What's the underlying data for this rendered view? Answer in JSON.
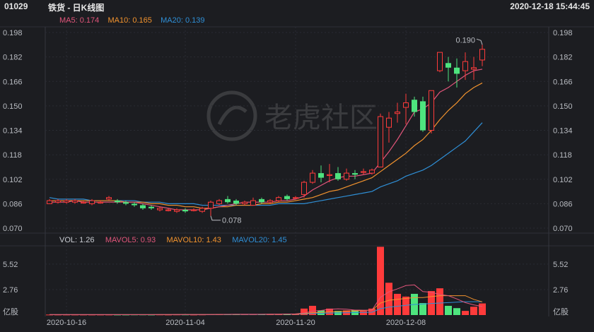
{
  "header": {
    "code": "01029",
    "title": "铁货 - 日K线图",
    "datetime": "2020-12-18 15:44:45"
  },
  "ma_legend": {
    "ma5": "MA5: 0.174",
    "ma10": "MA10: 0.165",
    "ma20": "MA20: 0.139"
  },
  "vol_legend": {
    "vol": "VOL: 1.26",
    "mavol5": "MAVOL5: 0.93",
    "mavol10": "MAVOL10: 1.43",
    "mavol20": "MAVOL20: 1.45"
  },
  "watermark": {
    "text": "老虎社区"
  },
  "colors": {
    "up": "#ff3b3b",
    "down": "#4ee47e",
    "ma5": "#e0557a",
    "ma10": "#f2932e",
    "ma20": "#2f8fd6",
    "grid": "#2a2c33"
  },
  "chart_data": [
    {
      "type": "candlestick",
      "title": "",
      "y_ticks": [
        "0.198",
        "0.182",
        "0.166",
        "0.150",
        "0.134",
        "0.118",
        "0.102",
        "0.086",
        "0.070"
      ],
      "ylim": [
        0.07,
        0.198
      ],
      "x_tick_labels": [
        "2020-10-16",
        "2020-11-04",
        "2020-11-20",
        "2020-12-08"
      ],
      "annotations": [
        {
          "label": "0.190"
        },
        {
          "label": "0.078"
        }
      ],
      "candles": [
        {
          "o": 0.086,
          "c": 0.088,
          "h": 0.089,
          "l": 0.086
        },
        {
          "o": 0.087,
          "c": 0.088,
          "h": 0.089,
          "l": 0.086
        },
        {
          "o": 0.087,
          "c": 0.088,
          "h": 0.089,
          "l": 0.086
        },
        {
          "o": 0.087,
          "c": 0.088,
          "h": 0.089,
          "l": 0.086
        },
        {
          "o": 0.087,
          "c": 0.087,
          "h": 0.088,
          "l": 0.086
        },
        {
          "o": 0.086,
          "c": 0.088,
          "h": 0.089,
          "l": 0.085
        },
        {
          "o": 0.087,
          "c": 0.087,
          "h": 0.088,
          "l": 0.086
        },
        {
          "o": 0.089,
          "c": 0.09,
          "h": 0.091,
          "l": 0.088
        },
        {
          "o": 0.088,
          "c": 0.087,
          "h": 0.089,
          "l": 0.086
        },
        {
          "o": 0.087,
          "c": 0.086,
          "h": 0.088,
          "l": 0.085
        },
        {
          "o": 0.086,
          "c": 0.085,
          "h": 0.087,
          "l": 0.084
        },
        {
          "o": 0.085,
          "c": 0.083,
          "h": 0.086,
          "l": 0.082
        },
        {
          "o": 0.084,
          "c": 0.083,
          "h": 0.085,
          "l": 0.082
        },
        {
          "o": 0.082,
          "c": 0.083,
          "h": 0.084,
          "l": 0.081
        },
        {
          "o": 0.082,
          "c": 0.082,
          "h": 0.083,
          "l": 0.081
        },
        {
          "o": 0.081,
          "c": 0.082,
          "h": 0.083,
          "l": 0.08
        },
        {
          "o": 0.082,
          "c": 0.081,
          "h": 0.083,
          "l": 0.08
        },
        {
          "o": 0.082,
          "c": 0.082,
          "h": 0.083,
          "l": 0.081
        },
        {
          "o": 0.081,
          "c": 0.083,
          "h": 0.084,
          "l": 0.08
        },
        {
          "o": 0.083,
          "c": 0.087,
          "h": 0.088,
          "l": 0.078
        },
        {
          "o": 0.086,
          "c": 0.088,
          "h": 0.089,
          "l": 0.085
        },
        {
          "o": 0.089,
          "c": 0.087,
          "h": 0.091,
          "l": 0.086
        },
        {
          "o": 0.088,
          "c": 0.086,
          "h": 0.089,
          "l": 0.085
        },
        {
          "o": 0.086,
          "c": 0.087,
          "h": 0.088,
          "l": 0.085
        },
        {
          "o": 0.085,
          "c": 0.088,
          "h": 0.09,
          "l": 0.085
        },
        {
          "o": 0.089,
          "c": 0.087,
          "h": 0.09,
          "l": 0.086
        },
        {
          "o": 0.087,
          "c": 0.088,
          "h": 0.089,
          "l": 0.086
        },
        {
          "o": 0.088,
          "c": 0.09,
          "h": 0.091,
          "l": 0.087
        },
        {
          "o": 0.091,
          "c": 0.089,
          "h": 0.092,
          "l": 0.088
        },
        {
          "o": 0.09,
          "c": 0.09,
          "h": 0.091,
          "l": 0.089
        },
        {
          "o": 0.092,
          "c": 0.1,
          "h": 0.101,
          "l": 0.09
        },
        {
          "o": 0.1,
          "c": 0.106,
          "h": 0.108,
          "l": 0.099
        },
        {
          "o": 0.106,
          "c": 0.103,
          "h": 0.111,
          "l": 0.1
        },
        {
          "o": 0.105,
          "c": 0.105,
          "h": 0.112,
          "l": 0.1
        },
        {
          "o": 0.106,
          "c": 0.102,
          "h": 0.11,
          "l": 0.101
        },
        {
          "o": 0.102,
          "c": 0.106,
          "h": 0.109,
          "l": 0.101
        },
        {
          "o": 0.106,
          "c": 0.105,
          "h": 0.108,
          "l": 0.102
        },
        {
          "o": 0.107,
          "c": 0.107,
          "h": 0.109,
          "l": 0.105
        },
        {
          "o": 0.106,
          "c": 0.108,
          "h": 0.109,
          "l": 0.105
        },
        {
          "o": 0.11,
          "c": 0.143,
          "h": 0.145,
          "l": 0.11
        },
        {
          "o": 0.136,
          "c": 0.142,
          "h": 0.146,
          "l": 0.126
        },
        {
          "o": 0.145,
          "c": 0.146,
          "h": 0.152,
          "l": 0.139
        },
        {
          "o": 0.149,
          "c": 0.152,
          "h": 0.158,
          "l": 0.138
        },
        {
          "o": 0.154,
          "c": 0.146,
          "h": 0.156,
          "l": 0.143
        },
        {
          "o": 0.153,
          "c": 0.134,
          "h": 0.156,
          "l": 0.133
        },
        {
          "o": 0.134,
          "c": 0.16,
          "h": 0.16,
          "l": 0.132
        },
        {
          "o": 0.173,
          "c": 0.185,
          "h": 0.185,
          "l": 0.172
        },
        {
          "o": 0.178,
          "c": 0.175,
          "h": 0.182,
          "l": 0.166
        },
        {
          "o": 0.175,
          "c": 0.171,
          "h": 0.181,
          "l": 0.162
        },
        {
          "o": 0.173,
          "c": 0.179,
          "h": 0.185,
          "l": 0.167
        },
        {
          "o": 0.174,
          "c": 0.175,
          "h": 0.182,
          "l": 0.167
        },
        {
          "o": 0.18,
          "c": 0.187,
          "h": 0.19,
          "l": 0.176
        }
      ],
      "ma5": [
        0.087,
        0.087,
        0.087,
        0.088,
        0.087,
        0.087,
        0.087,
        0.087,
        0.087,
        0.087,
        0.087,
        0.086,
        0.085,
        0.084,
        0.083,
        0.082,
        0.082,
        0.082,
        0.082,
        0.083,
        0.084,
        0.085,
        0.086,
        0.087,
        0.087,
        0.087,
        0.087,
        0.088,
        0.088,
        0.089,
        0.091,
        0.095,
        0.098,
        0.101,
        0.103,
        0.104,
        0.104,
        0.105,
        0.106,
        0.113,
        0.12,
        0.128,
        0.137,
        0.146,
        0.148,
        0.152,
        0.159,
        0.162,
        0.166,
        0.17,
        0.173,
        0.174
      ],
      "ma10": [
        0.088,
        0.088,
        0.088,
        0.088,
        0.088,
        0.088,
        0.088,
        0.088,
        0.088,
        0.087,
        0.087,
        0.087,
        0.086,
        0.086,
        0.085,
        0.085,
        0.084,
        0.084,
        0.083,
        0.083,
        0.084,
        0.084,
        0.085,
        0.085,
        0.085,
        0.086,
        0.086,
        0.087,
        0.087,
        0.088,
        0.089,
        0.09,
        0.092,
        0.094,
        0.095,
        0.097,
        0.099,
        0.101,
        0.103,
        0.107,
        0.111,
        0.115,
        0.119,
        0.124,
        0.128,
        0.134,
        0.141,
        0.147,
        0.152,
        0.158,
        0.162,
        0.165
      ],
      "ma20": [
        0.09,
        0.089,
        0.089,
        0.089,
        0.089,
        0.088,
        0.088,
        0.088,
        0.088,
        0.088,
        0.088,
        0.087,
        0.087,
        0.087,
        0.086,
        0.086,
        0.086,
        0.086,
        0.085,
        0.085,
        0.085,
        0.085,
        0.085,
        0.085,
        0.085,
        0.085,
        0.085,
        0.086,
        0.086,
        0.086,
        0.086,
        0.087,
        0.088,
        0.089,
        0.09,
        0.091,
        0.092,
        0.093,
        0.094,
        0.097,
        0.099,
        0.101,
        0.104,
        0.106,
        0.108,
        0.111,
        0.115,
        0.119,
        0.123,
        0.127,
        0.133,
        0.139
      ]
    },
    {
      "type": "bar",
      "title": "",
      "unit_label": "亿股",
      "y_ticks": [
        "5.52",
        "2.76"
      ],
      "ylim": [
        0,
        7.2
      ],
      "volumes": [
        0.05,
        0.05,
        0.05,
        0.05,
        0.05,
        0.05,
        0.05,
        0.05,
        0.05,
        0.05,
        0.06,
        0.06,
        0.05,
        0.06,
        0.05,
        0.06,
        0.06,
        0.05,
        0.06,
        0.08,
        0.1,
        0.1,
        0.09,
        0.08,
        0.1,
        0.1,
        0.1,
        0.11,
        0.13,
        0.15,
        0.7,
        1.0,
        0.5,
        0.7,
        0.45,
        0.5,
        0.55,
        0.45,
        0.7,
        7.4,
        3.5,
        2.3,
        2.0,
        2.3,
        1.3,
        2.6,
        2.9,
        1.0,
        0.75,
        0.45,
        0.9,
        1.26
      ],
      "mavol5": [
        0.05,
        0.05,
        0.05,
        0.05,
        0.05,
        0.05,
        0.05,
        0.05,
        0.05,
        0.05,
        0.05,
        0.05,
        0.05,
        0.06,
        0.06,
        0.06,
        0.06,
        0.06,
        0.06,
        0.06,
        0.07,
        0.08,
        0.09,
        0.09,
        0.09,
        0.09,
        0.1,
        0.1,
        0.11,
        0.12,
        0.22,
        0.42,
        0.5,
        0.62,
        0.67,
        0.63,
        0.54,
        0.53,
        0.53,
        1.93,
        2.52,
        2.84,
        3.2,
        3.27,
        2.55,
        2.47,
        2.23,
        2.1,
        1.75,
        1.35,
        1.1,
        0.93
      ],
      "mavol10": [
        0.05,
        0.05,
        0.05,
        0.05,
        0.05,
        0.05,
        0.05,
        0.05,
        0.05,
        0.05,
        0.05,
        0.05,
        0.05,
        0.05,
        0.05,
        0.06,
        0.06,
        0.06,
        0.06,
        0.06,
        0.06,
        0.07,
        0.07,
        0.08,
        0.08,
        0.08,
        0.09,
        0.09,
        0.1,
        0.1,
        0.16,
        0.25,
        0.29,
        0.35,
        0.38,
        0.42,
        0.45,
        0.49,
        0.54,
        1.3,
        1.6,
        1.7,
        1.8,
        1.9,
        1.9,
        2.0,
        2.1,
        2.1,
        2.1,
        2.1,
        1.7,
        1.43
      ],
      "mavol20": [
        0.05,
        0.05,
        0.05,
        0.05,
        0.05,
        0.05,
        0.05,
        0.05,
        0.05,
        0.05,
        0.05,
        0.05,
        0.05,
        0.05,
        0.05,
        0.05,
        0.05,
        0.05,
        0.05,
        0.05,
        0.06,
        0.06,
        0.06,
        0.06,
        0.06,
        0.06,
        0.07,
        0.07,
        0.08,
        0.08,
        0.12,
        0.17,
        0.19,
        0.22,
        0.23,
        0.25,
        0.27,
        0.29,
        0.31,
        0.69,
        0.86,
        0.96,
        1.05,
        1.15,
        1.2,
        1.25,
        1.3,
        1.35,
        1.4,
        1.45,
        1.45,
        1.45
      ]
    }
  ]
}
